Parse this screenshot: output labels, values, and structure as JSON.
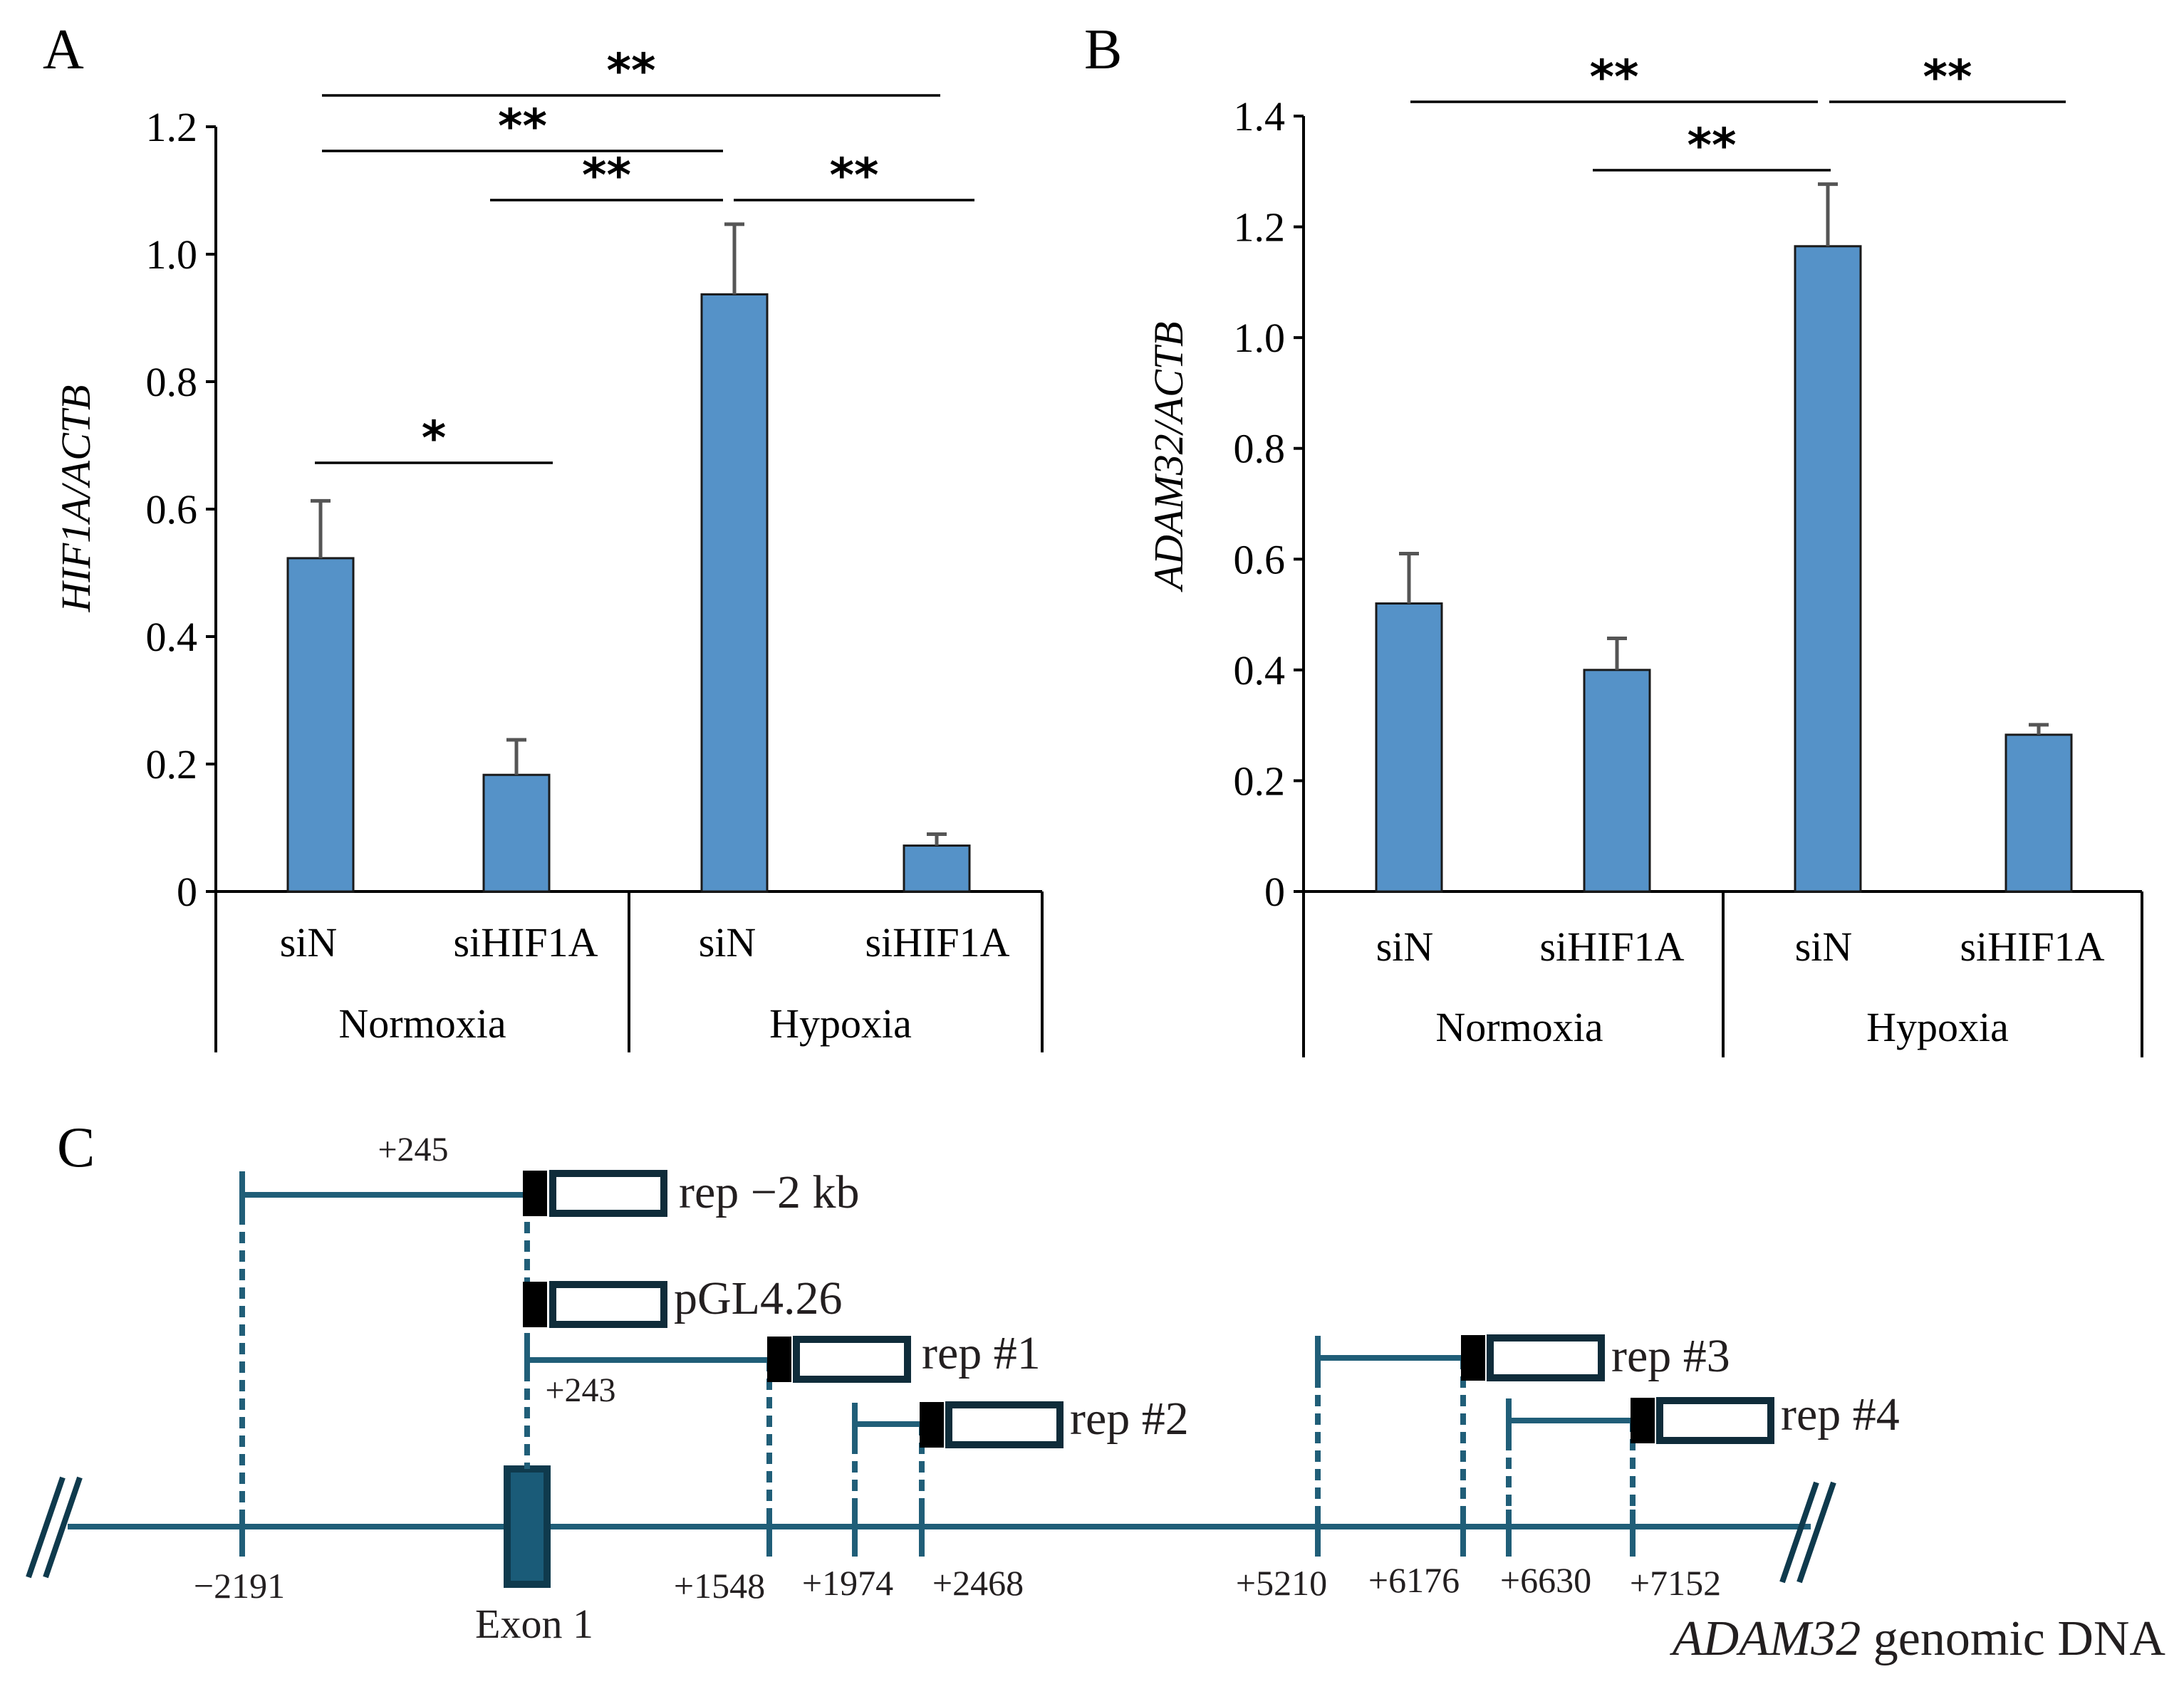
{
  "panels": {
    "a_label": "A",
    "b_label": "B",
    "c_label": "C"
  },
  "chart_data": [
    {
      "type": "bar",
      "panel": "A",
      "ylabel": "HIF1A/ACTB",
      "ylim": [
        0,
        1.2
      ],
      "ytick_labels": [
        "0",
        "0.2",
        "0.4",
        "0.6",
        "0.8",
        "1.0",
        "1.2"
      ],
      "categories": [
        "siN",
        "siHIF1A",
        "siN",
        "siHIF1A"
      ],
      "groups": [
        "Normoxia",
        "Hypoxia"
      ],
      "values": [
        0.523,
        0.183,
        0.937,
        0.072
      ],
      "errors": [
        0.09,
        0.055,
        0.11,
        0.018
      ],
      "bar_color": "#5592c8",
      "significance": [
        {
          "from": 0,
          "to": 1,
          "label": "*"
        },
        {
          "from": 1,
          "to": 2,
          "label": "**"
        },
        {
          "from": 2,
          "to": 3,
          "label": "**"
        },
        {
          "from": 0,
          "to": 2,
          "label": "**"
        },
        {
          "from": 0,
          "to": 3,
          "label": "**"
        }
      ]
    },
    {
      "type": "bar",
      "panel": "B",
      "ylabel": "ADAM32/ACTB",
      "ylim": [
        0,
        1.4
      ],
      "ytick_labels": [
        "0",
        "0.2",
        "0.4",
        "0.6",
        "0.8",
        "1.0",
        "1.2",
        "1.4"
      ],
      "categories": [
        "siN",
        "siHIF1A",
        "siN",
        "siHIF1A"
      ],
      "groups": [
        "Normoxia",
        "Hypoxia"
      ],
      "values": [
        0.52,
        0.4,
        1.165,
        0.283
      ],
      "errors": [
        0.09,
        0.057,
        0.112,
        0.018
      ],
      "bar_color": "#5592c8",
      "significance": [
        {
          "from": 1,
          "to": 2,
          "label": "**"
        },
        {
          "from": 0,
          "to": 2,
          "label": "**"
        },
        {
          "from": 2,
          "to": 3,
          "label": "**"
        }
      ]
    }
  ],
  "diagram": {
    "gene_label_italic": "ADAM32",
    "gene_label_rest": " genomic DNA",
    "exon_label": "Exon 1",
    "line_color": "#205e78",
    "positions": [
      "−2191",
      "+1548",
      "+1974",
      "+2468",
      "+5210",
      "+6176",
      "+6630",
      "+7152"
    ],
    "upper_labels": {
      "plus245": "+245",
      "plus243": "+243"
    },
    "constructs": [
      "rep −2 kb",
      "pGL4.26",
      "rep #1",
      "rep #2",
      "rep #3",
      "rep #4"
    ]
  }
}
